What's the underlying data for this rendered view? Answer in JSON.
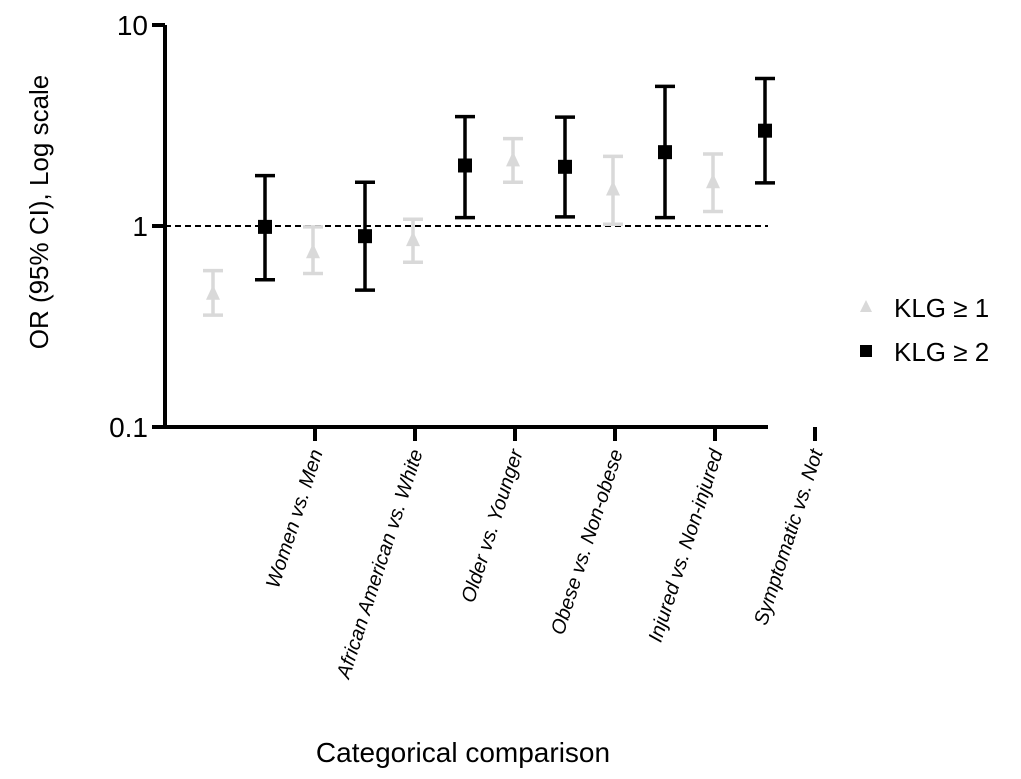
{
  "chart_data": {
    "type": "scatter",
    "title": "",
    "ylabel": "OR (95% CI), Log scale",
    "xlabel": "Categorical comparison",
    "yscale": "log",
    "ylim": [
      0.1,
      10
    ],
    "yticks": [
      {
        "value": 0.1,
        "label": "0.1"
      },
      {
        "value": 1,
        "label": "1"
      },
      {
        "value": 10,
        "label": "10"
      }
    ],
    "reference_line": {
      "y": 1,
      "style": "dashed"
    },
    "categories": [
      "Women vs. Men",
      "African American vs. White",
      "Older vs. Younger",
      "Obese vs. Non-obese",
      "Injured vs. Non-injured",
      "Symptomatic vs. Not"
    ],
    "legend": {
      "placement": "right"
    },
    "series": [
      {
        "name": "KLG ≥ 1",
        "marker": "triangle",
        "color": "#d9d9d9",
        "points": [
          {
            "or": 0.46,
            "ci": [
              0.36,
              0.6
            ]
          },
          {
            "or": 0.74,
            "ci": [
              0.58,
              0.99
            ]
          },
          {
            "or": 0.85,
            "ci": [
              0.66,
              1.08
            ]
          },
          {
            "or": 2.12,
            "ci": [
              1.65,
              2.72
            ]
          },
          {
            "or": 1.52,
            "ci": [
              1.02,
              2.22
            ]
          },
          {
            "or": 1.65,
            "ci": [
              1.18,
              2.28
            ]
          }
        ]
      },
      {
        "name": "KLG ≥ 2",
        "marker": "square",
        "color": "#000000",
        "points": [
          {
            "or": 0.99,
            "ci": [
              0.54,
              1.78
            ]
          },
          {
            "or": 0.89,
            "ci": [
              0.48,
              1.65
            ]
          },
          {
            "or": 2.0,
            "ci": [
              1.1,
              3.5
            ]
          },
          {
            "or": 1.97,
            "ci": [
              1.11,
              3.48
            ]
          },
          {
            "or": 2.33,
            "ci": [
              1.1,
              4.95
            ]
          },
          {
            "or": 2.98,
            "ci": [
              1.64,
              5.42
            ]
          }
        ]
      }
    ]
  }
}
